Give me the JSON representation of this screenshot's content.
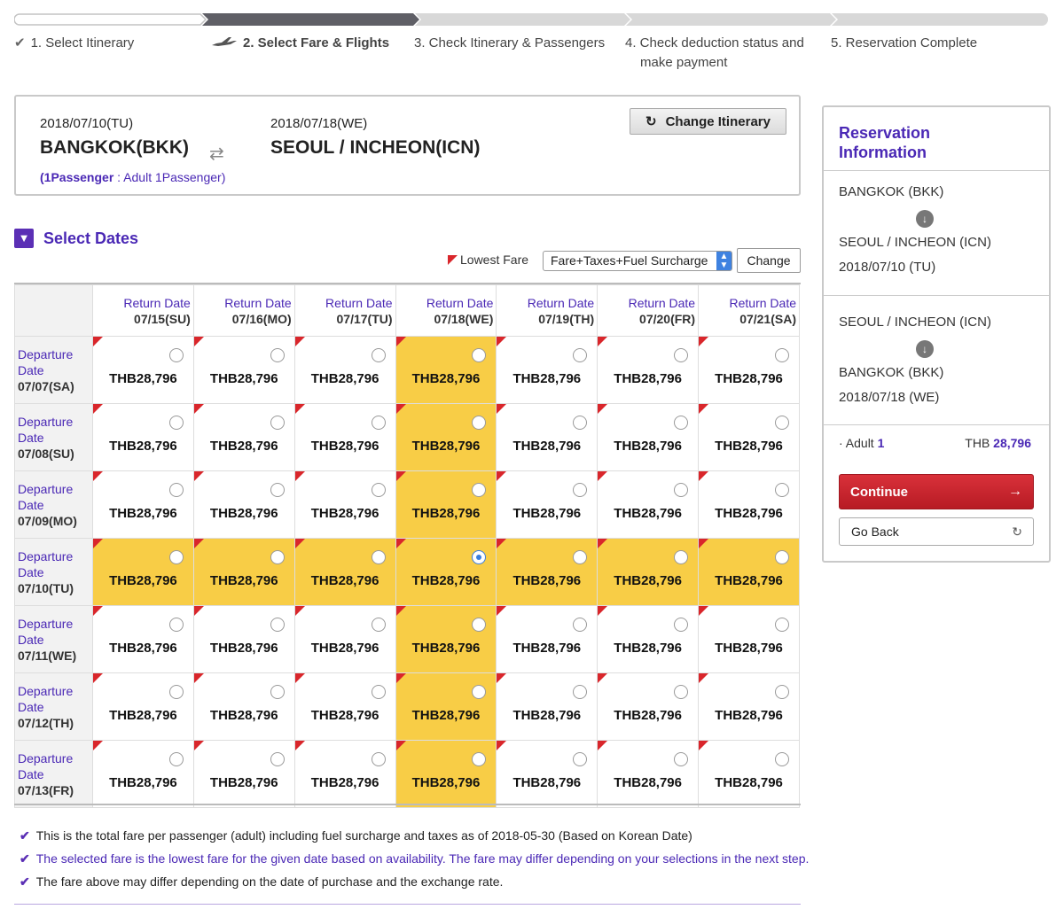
{
  "steps": [
    {
      "label": "1. Select Itinerary",
      "icon": "check-icon"
    },
    {
      "label": "2. Select Fare & Flights",
      "icon": "airplane-icon"
    },
    {
      "label": "3. Check Itinerary & Passengers"
    },
    {
      "label": "4. Check deduction status and",
      "label2": "make payment"
    },
    {
      "label": "5. Reservation Complete"
    }
  ],
  "itinerary": {
    "depart_date": "2018/07/10(TU)",
    "depart_city": "BANGKOK(BKK)",
    "return_date": "2018/07/18(WE)",
    "return_city": "SEOUL / INCHEON(ICN)",
    "pax_bold": "(1Passenger",
    "pax_rest": " : Adult 1Passenger)",
    "change_label": "Change Itinerary"
  },
  "select_dates": {
    "title": "Select Dates",
    "legend": "Lowest Fare",
    "fare_type": "Fare+Taxes+Fuel Surcharge",
    "change_label": "Change"
  },
  "grid": {
    "return_label": "Return Date",
    "departure_label_1": "Departure",
    "departure_label_2": "Date",
    "return_dates": [
      "07/15(SU)",
      "07/16(MO)",
      "07/17(TU)",
      "07/18(WE)",
      "07/19(TH)",
      "07/20(FR)",
      "07/21(SA)"
    ],
    "departure_dates": [
      "07/07(SA)",
      "07/08(SU)",
      "07/09(MO)",
      "07/10(TU)",
      "07/11(WE)",
      "07/12(TH)",
      "07/13(FR)"
    ],
    "fare": "THB28,796",
    "selected_row": 3,
    "selected_col": 3
  },
  "notes": [
    "This is the total fare per passenger (adult) including fuel surcharge and taxes as of 2018-05-30 (Based on Korean Date)",
    "The selected fare is the lowest fare for the given date based on availability. The fare may differ depending on your selections in the next step.",
    "The fare above may differ depending on the date of purchase and the exchange rate."
  ],
  "sidebar": {
    "title_1": "Reservation",
    "title_2": "Information",
    "leg1_from": "BANGKOK (BKK)",
    "leg1_to": "SEOUL / INCHEON (ICN)",
    "leg1_date": "2018/07/10 (TU)",
    "leg2_from": "SEOUL / INCHEON (ICN)",
    "leg2_to": "BANGKOK (BKK)",
    "leg2_date": "2018/07/18 (WE)",
    "adult_label": "· Adult ",
    "adult_count": "1",
    "currency": "THB ",
    "total": "28,796",
    "continue_label": "Continue",
    "back_label": "Go Back"
  },
  "colors": {
    "accent": "#4a28b5",
    "highlight": "#f8cd46",
    "lowest_fare_marker": "#d9262b",
    "continue_button": "#c4222b"
  }
}
